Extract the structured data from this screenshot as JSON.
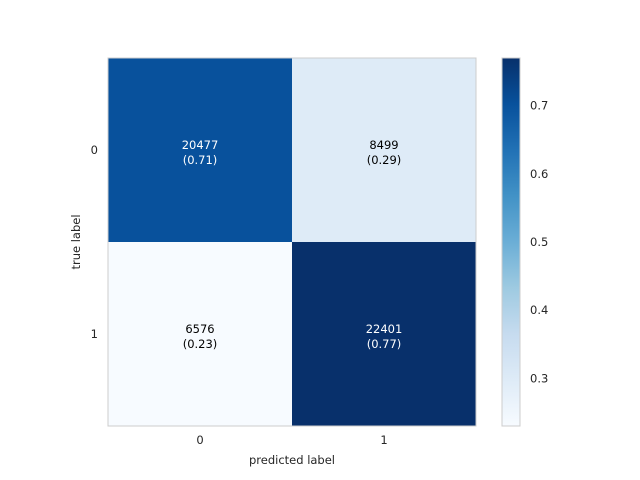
{
  "chart_data": {
    "type": "heatmap",
    "title": "",
    "xlabel": "predicted label",
    "ylabel": "true label",
    "x_categories": [
      "0",
      "1"
    ],
    "y_categories": [
      "0",
      "1"
    ],
    "counts": [
      [
        20477,
        8499
      ],
      [
        6576,
        22401
      ]
    ],
    "normalized": [
      [
        0.71,
        0.29
      ],
      [
        0.23,
        0.77
      ]
    ],
    "cell_labels": [
      [
        "20477\n(0.71)",
        "8499\n(0.29)"
      ],
      [
        "6576\n(0.23)",
        "22401\n(0.77)"
      ]
    ],
    "colormap": "Blues",
    "color_range": [
      0.23,
      0.77
    ],
    "colorbar_ticks": [
      "0.3",
      "0.4",
      "0.5",
      "0.6",
      "0.7"
    ],
    "colorbar_tick_values": [
      0.3,
      0.4,
      0.5,
      0.6,
      0.7
    ],
    "grid": false,
    "colors": {
      "cell_0_0": "#08519c",
      "cell_0_1": "#deebf7",
      "cell_1_0": "#f7fbff",
      "cell_1_1": "#08306b"
    }
  }
}
